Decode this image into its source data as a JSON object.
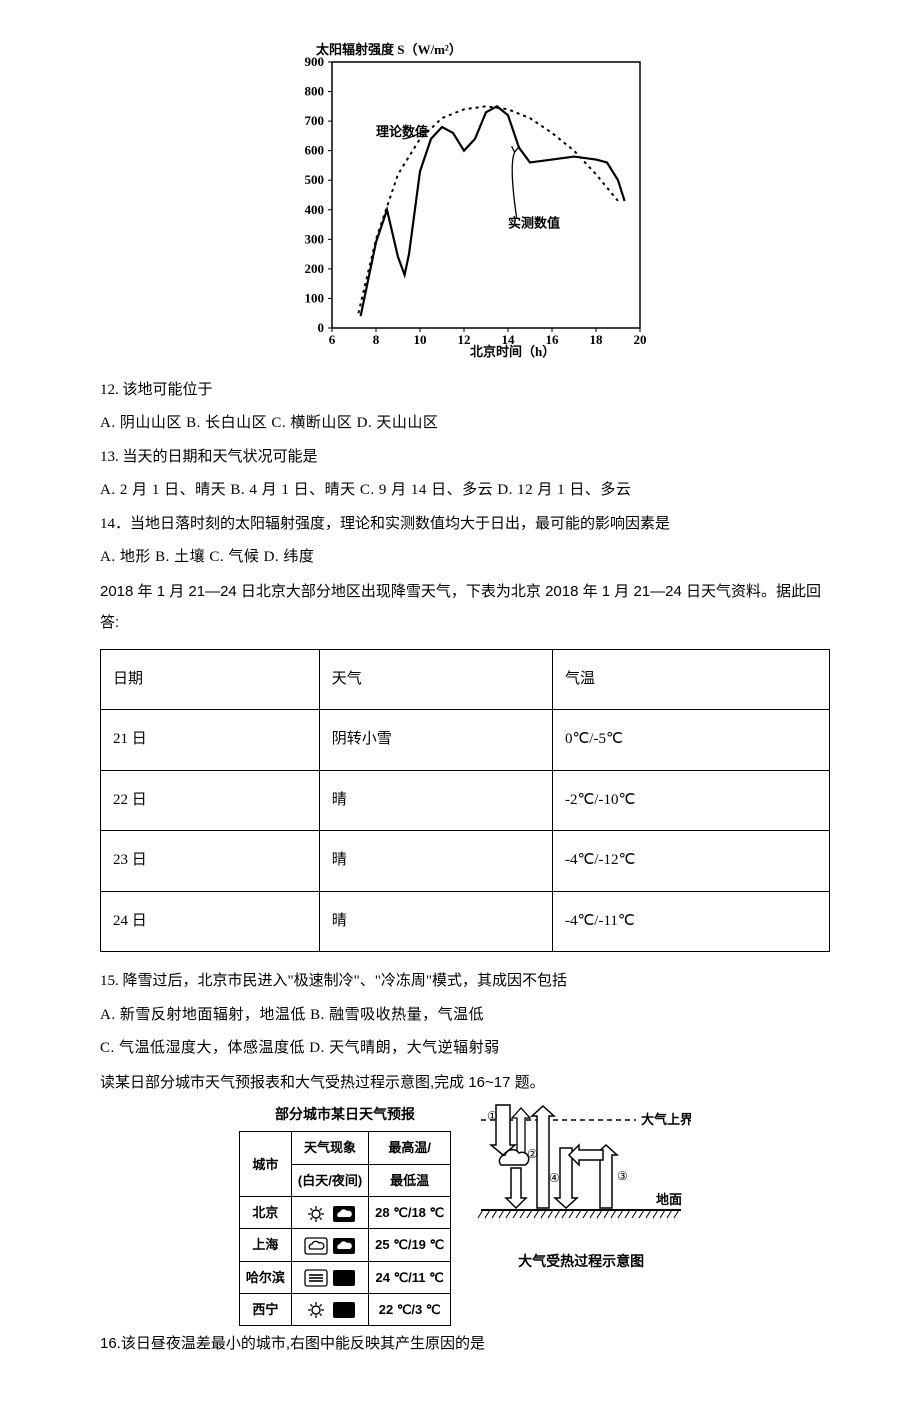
{
  "chart": {
    "y_title": "太阳辐射强度 S（W/m²）",
    "x_title": "北京时间（h）",
    "ylim": [
      0,
      900
    ],
    "ytick_step": 100,
    "xlim": [
      6,
      20
    ],
    "xtick_step": 2,
    "legend_theory": "理论数值",
    "legend_measured": "实测数值",
    "theory_points": [
      [
        7.2,
        50
      ],
      [
        8,
        300
      ],
      [
        9,
        520
      ],
      [
        10,
        640
      ],
      [
        11,
        710
      ],
      [
        12,
        740
      ],
      [
        13,
        750
      ],
      [
        14,
        740
      ],
      [
        15,
        710
      ],
      [
        16,
        660
      ],
      [
        17,
        600
      ],
      [
        18,
        520
      ],
      [
        19,
        430
      ]
    ],
    "measured_points": [
      [
        7.3,
        40
      ],
      [
        8,
        290
      ],
      [
        8.5,
        400
      ],
      [
        9,
        240
      ],
      [
        9.3,
        180
      ],
      [
        9.5,
        250
      ],
      [
        10,
        530
      ],
      [
        10.5,
        640
      ],
      [
        11,
        680
      ],
      [
        11.5,
        660
      ],
      [
        12,
        600
      ],
      [
        12.5,
        640
      ],
      [
        13,
        730
      ],
      [
        13.5,
        750
      ],
      [
        14,
        720
      ],
      [
        14.5,
        610
      ],
      [
        15,
        560
      ],
      [
        16,
        570
      ],
      [
        17,
        580
      ],
      [
        18,
        570
      ],
      [
        18.5,
        560
      ],
      [
        19,
        500
      ],
      [
        19.3,
        430
      ]
    ],
    "axis_color": "#000000",
    "bg": "#ffffff",
    "title_fontsize": 13,
    "label_fontsize": 13
  },
  "q12": {
    "stem": "12. 该地可能位于",
    "opts": "A. 阴山山区     B. 长白山区    C. 横断山区    D. 天山山区"
  },
  "q13": {
    "stem": "13. 当天的日期和天气状况可能是",
    "opts": "A. 2 月 1 日、晴天    B. 4 月 1 日、晴天   C. 9 月 14 日、多云    D. 12 月 1 日、多云"
  },
  "q14": {
    "stem": "14．当地日落时刻的太阳辐射强度，理论和实测数值均大于日出，最可能的影响因素是",
    "opts": "A. 地形     B. 土壤     C. 气候     D. 纬度"
  },
  "intro1": "2018 年 1 月 21—24 日北京大部分地区出现降雪天气，下表为北京 2018 年 1 月 21—24 日天气资料。据此回答:",
  "table1": {
    "headers": [
      "日期",
      "天气",
      "气温"
    ],
    "rows": [
      [
        "21 日",
        "阴转小雪",
        "0℃/-5℃"
      ],
      [
        "22 日",
        "晴",
        "-2℃/-10℃"
      ],
      [
        "23 日",
        "晴",
        "-4℃/-12℃"
      ],
      [
        "24 日",
        "晴",
        "-4℃/-11℃"
      ]
    ]
  },
  "q15": {
    "stem": "15. 降雪过后，北京市民进入\"极速制冷\"、\"冷冻周\"模式，其成因不包括",
    "opts_line1": "A. 新雪反射地面辐射，地温低     B. 融雪吸收热量，气温低",
    "opts_line2": "C. 气温低湿度大，体感温度低     D. 天气晴朗，大气逆辐射弱"
  },
  "intro2": "读某日部分城市天气预报表和大气受热过程示意图,完成 16~17 题。",
  "forecast": {
    "title": "部分城市某日天气预报",
    "col1": "城市",
    "col2a": "天气现象",
    "col2b": "(白天/夜间)",
    "col3a": "最高温/",
    "col3b": "最低温",
    "rows": [
      {
        "city": "北京",
        "day_icon": "sun",
        "night_icon": "cloud-dark",
        "temp": "28 ℃/18 ℃"
      },
      {
        "city": "上海",
        "day_icon": "cloud-light",
        "night_icon": "cloud-dark",
        "temp": "25 ℃/19 ℃"
      },
      {
        "city": "哈尔滨",
        "day_icon": "fog",
        "night_icon": "moon",
        "temp": "24 ℃/11 ℃"
      },
      {
        "city": "西宁",
        "day_icon": "sun",
        "night_icon": "moon",
        "temp": "22 ℃/3 ℃"
      }
    ]
  },
  "diagram": {
    "caption": "大气受热过程示意图",
    "label_top": "大气上界",
    "label_ground": "地面",
    "num1": "①",
    "num2": "②",
    "num3": "③",
    "num4": "④"
  },
  "q16": {
    "stem": "16.该日昼夜温差最小的城市,右图中能反映其产生原因的是"
  }
}
